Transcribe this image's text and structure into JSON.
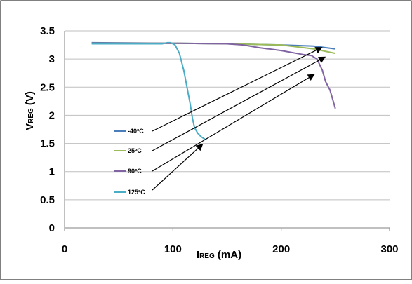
{
  "chart_data": {
    "type": "line",
    "xlabel": {
      "main": "I",
      "sub": "REG",
      "rest": " (mA)"
    },
    "ylabel": {
      "main": "V",
      "sub": "REG",
      "rest": " (V)"
    },
    "xlim": [
      0,
      300
    ],
    "ylim": [
      0,
      3.5
    ],
    "xticks": [
      0,
      100,
      200,
      300
    ],
    "yticks": [
      0,
      0.5,
      1,
      1.5,
      2,
      2.5,
      3,
      3.5
    ],
    "xtick_labels": [
      "0",
      "100",
      "200",
      "300"
    ],
    "ytick_labels": [
      "0",
      "0.5",
      "1",
      "1.5",
      "2",
      "2.5",
      "3",
      "3.5"
    ],
    "grid": "horizontal",
    "legend_position": "left-inside",
    "series": [
      {
        "name": "-40ºC",
        "color": "#4a7ebb",
        "points": [
          [
            25,
            3.29
          ],
          [
            100,
            3.28
          ],
          [
            150,
            3.27
          ],
          [
            200,
            3.25
          ],
          [
            230,
            3.23
          ],
          [
            250,
            3.18
          ]
        ],
        "arrow_target": [
          237,
          3.2
        ]
      },
      {
        "name": "25ºC",
        "color": "#9bbb59",
        "points": [
          [
            25,
            3.28
          ],
          [
            100,
            3.28
          ],
          [
            150,
            3.27
          ],
          [
            200,
            3.25
          ],
          [
            230,
            3.18
          ],
          [
            250,
            3.1
          ]
        ],
        "arrow_target": [
          240,
          3.03
        ]
      },
      {
        "name": "90ºC",
        "color": "#8064a2",
        "points": [
          [
            25,
            3.28
          ],
          [
            100,
            3.28
          ],
          [
            150,
            3.27
          ],
          [
            165,
            3.25
          ],
          [
            180,
            3.2
          ],
          [
            200,
            3.15
          ],
          [
            220,
            3.08
          ],
          [
            228,
            3.06
          ],
          [
            233,
            3.0
          ],
          [
            238,
            2.8
          ],
          [
            241,
            2.6
          ],
          [
            245,
            2.45
          ],
          [
            250,
            2.12
          ]
        ],
        "arrow_target": [
          230,
          2.72
        ]
      },
      {
        "name": "125ºC",
        "color": "#4bacc6",
        "points": [
          [
            25,
            3.27
          ],
          [
            90,
            3.27
          ],
          [
            95,
            3.29
          ],
          [
            98,
            3.29
          ],
          [
            102,
            3.25
          ],
          [
            106,
            3.1
          ],
          [
            110,
            2.8
          ],
          [
            113,
            2.5
          ],
          [
            116,
            2.2
          ],
          [
            118,
            1.95
          ],
          [
            120,
            1.78
          ],
          [
            123,
            1.68
          ],
          [
            126,
            1.62
          ],
          [
            130,
            1.57
          ]
        ],
        "arrow_target": [
          127,
          1.48
        ]
      }
    ]
  }
}
